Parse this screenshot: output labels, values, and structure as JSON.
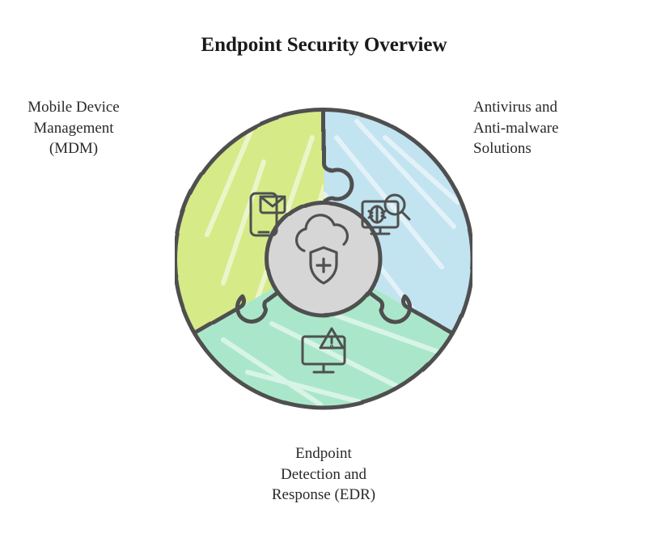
{
  "title": {
    "text": "Endpoint Security Overview",
    "fontsize": 25
  },
  "diagram": {
    "type": "infographic",
    "shape": "three-piece-puzzle-donut",
    "outer_radius": 184,
    "inner_radius": 70,
    "stroke_color": "#4f5050",
    "stroke_width": 5,
    "text_color": "#2a2a2a",
    "label_fontsize": 19,
    "center_fill": "#d6d6d6",
    "center_icon": "cloud-shield",
    "segments": [
      {
        "id": "mdm",
        "label": "Mobile Device\nManagement\n(MDM)",
        "fill": "#d6ea88",
        "icon": "mobile-mail-icon",
        "position": "top-left"
      },
      {
        "id": "av",
        "label": "Antivirus and\nAnti-malware\nSolutions",
        "fill": "#c2e3f0",
        "icon": "bug-magnifier-icon",
        "position": "top-right"
      },
      {
        "id": "edr",
        "label": "Endpoint\nDetection and\nResponse (EDR)",
        "fill": "#aae7ca",
        "icon": "monitor-alert-icon",
        "position": "bottom"
      }
    ]
  }
}
